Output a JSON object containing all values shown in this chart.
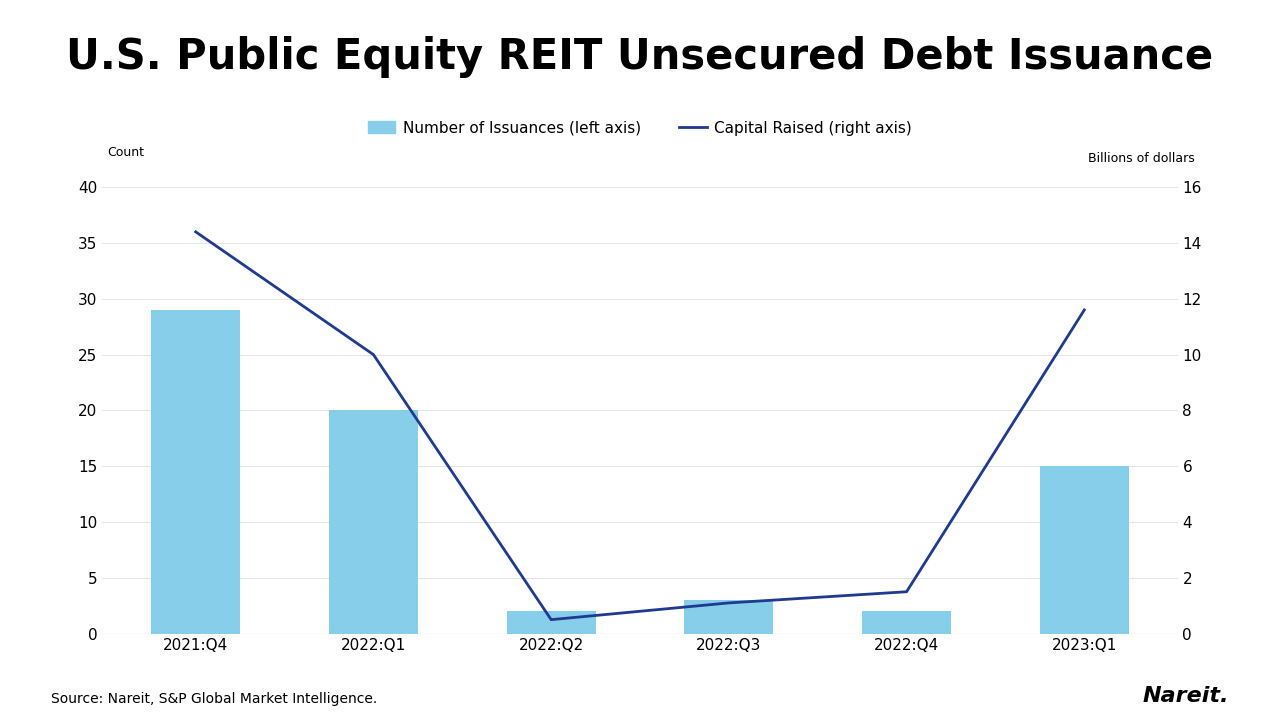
{
  "title": "U.S. Public Equity REIT Unsecured Debt Issuance",
  "categories": [
    "2021:Q4",
    "2022:Q1",
    "2022:Q2",
    "2022:Q3",
    "2022:Q4",
    "2023:Q1"
  ],
  "bar_values": [
    29,
    20,
    2,
    3,
    2,
    15
  ],
  "line_values": [
    14.4,
    10.0,
    0.5,
    1.1,
    1.5,
    11.6
  ],
  "bar_color": "#87CEEB",
  "line_color": "#1f3a8f",
  "left_axis_label": "Count",
  "right_axis_label": "Billions of dollars",
  "left_ylim": [
    0,
    40
  ],
  "right_ylim": [
    0,
    16
  ],
  "left_yticks": [
    0,
    5,
    10,
    15,
    20,
    25,
    30,
    35,
    40
  ],
  "right_yticks": [
    0,
    2,
    4,
    6,
    8,
    10,
    12,
    14,
    16
  ],
  "legend_bar_label": "Number of Issuances (left axis)",
  "legend_line_label": "Capital Raised (right axis)",
  "source_text": "Source: Nareit, S&P Global Market Intelligence.",
  "nareit_text": "Nareit.",
  "background_color": "#ffffff",
  "title_fontsize": 30,
  "axis_label_fontsize": 9,
  "tick_fontsize": 11,
  "legend_fontsize": 11,
  "source_fontsize": 10,
  "nareit_fontsize": 16,
  "line_width": 2.0,
  "bar_width": 0.5
}
